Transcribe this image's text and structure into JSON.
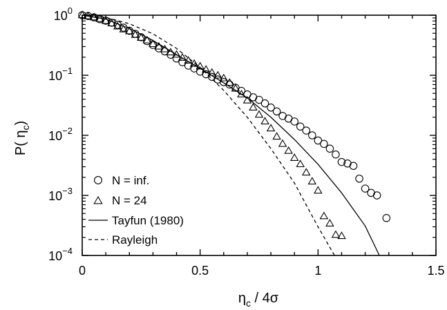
{
  "chart_data": {
    "type": "scatter",
    "xlabel_main": "η",
    "xlabel_sub": "c",
    "xlabel_rest": " / 4σ",
    "ylabel_pre": "P( η",
    "ylabel_sub": "c",
    "ylabel_post": ")",
    "xlim": [
      0,
      1.5
    ],
    "ylim": [
      0.0001,
      1
    ],
    "yscale": "log",
    "grid": false,
    "legend_position": "bottom-left",
    "xticks": [
      {
        "value": 0,
        "label": "0"
      },
      {
        "value": 0.5,
        "label": "0.5"
      },
      {
        "value": 1,
        "label": "1"
      },
      {
        "value": 1.5,
        "label": "1.5"
      }
    ],
    "yticks": [
      {
        "value": 1,
        "base": "10",
        "exp": "0"
      },
      {
        "value": 0.1,
        "base": "10",
        "exp": "−1"
      },
      {
        "value": 0.01,
        "base": "10",
        "exp": "−2"
      },
      {
        "value": 0.001,
        "base": "10",
        "exp": "−3"
      },
      {
        "value": 0.0001,
        "base": "10",
        "exp": "−4"
      }
    ],
    "series": [
      {
        "name": "N = inf.",
        "kind": "markers",
        "marker": "circle",
        "x": [
          0.0,
          0.025,
          0.05,
          0.075,
          0.1,
          0.125,
          0.15,
          0.175,
          0.2,
          0.225,
          0.25,
          0.275,
          0.3,
          0.325,
          0.35,
          0.375,
          0.4,
          0.425,
          0.45,
          0.475,
          0.5,
          0.525,
          0.55,
          0.575,
          0.6,
          0.625,
          0.65,
          0.675,
          0.7,
          0.725,
          0.75,
          0.775,
          0.8,
          0.825,
          0.85,
          0.875,
          0.9,
          0.925,
          0.95,
          0.975,
          1.0,
          1.025,
          1.05,
          1.075,
          1.1,
          1.125,
          1.15,
          1.175,
          1.2,
          1.225,
          1.25,
          1.29
        ],
        "y": [
          1.0,
          0.97,
          0.92,
          0.86,
          0.81,
          0.75,
          0.69,
          0.62,
          0.55,
          0.49,
          0.43,
          0.37,
          0.32,
          0.28,
          0.25,
          0.22,
          0.19,
          0.165,
          0.145,
          0.13,
          0.115,
          0.104,
          0.094,
          0.085,
          0.077,
          0.07,
          0.062,
          0.055,
          0.048,
          0.043,
          0.039,
          0.034,
          0.029,
          0.025,
          0.021,
          0.019,
          0.017,
          0.014,
          0.012,
          0.01,
          0.0082,
          0.0072,
          0.006,
          0.0048,
          0.0036,
          0.0034,
          0.0031,
          0.0019,
          0.0013,
          0.0011,
          0.001,
          0.00042
        ]
      },
      {
        "name": "N = 24",
        "kind": "markers",
        "marker": "triangle",
        "x": [
          0.0,
          0.025,
          0.05,
          0.075,
          0.1,
          0.125,
          0.15,
          0.175,
          0.2,
          0.225,
          0.25,
          0.275,
          0.3,
          0.325,
          0.35,
          0.375,
          0.4,
          0.425,
          0.45,
          0.475,
          0.5,
          0.525,
          0.55,
          0.575,
          0.6,
          0.625,
          0.65,
          0.675,
          0.7,
          0.725,
          0.75,
          0.775,
          0.8,
          0.825,
          0.85,
          0.875,
          0.9,
          0.925,
          0.95,
          0.975,
          1.0,
          1.025,
          1.05,
          1.075,
          1.1
        ],
        "y": [
          1.0,
          0.96,
          0.92,
          0.86,
          0.8,
          0.73,
          0.65,
          0.58,
          0.54,
          0.47,
          0.42,
          0.38,
          0.33,
          0.3,
          0.27,
          0.24,
          0.22,
          0.195,
          0.175,
          0.155,
          0.14,
          0.124,
          0.11,
          0.099,
          0.089,
          0.075,
          0.06,
          0.048,
          0.038,
          0.029,
          0.022,
          0.017,
          0.013,
          0.0095,
          0.0072,
          0.0055,
          0.0042,
          0.0033,
          0.0024,
          0.0017,
          0.0012,
          0.00045,
          0.00034,
          0.00022,
          0.00021
        ]
      },
      {
        "name": "Tayfun (1980)",
        "kind": "line",
        "dash": "solid",
        "x": [
          0,
          0.1,
          0.2,
          0.3,
          0.4,
          0.5,
          0.6,
          0.7,
          0.8,
          0.9,
          1.0,
          1.1,
          1.2,
          1.26
        ],
        "y": [
          1.0,
          0.86,
          0.6,
          0.38,
          0.22,
          0.13,
          0.075,
          0.042,
          0.02,
          0.0085,
          0.0033,
          0.0011,
          0.00031,
          0.0001
        ]
      },
      {
        "name": "Rayleigh",
        "kind": "line",
        "dash": "dashed",
        "x": [
          0,
          0.1,
          0.2,
          0.3,
          0.4,
          0.5,
          0.6,
          0.7,
          0.8,
          0.9,
          1.0,
          1.07
        ],
        "y": [
          1.0,
          0.92,
          0.72,
          0.49,
          0.28,
          0.135,
          0.056,
          0.02,
          0.006,
          0.0016,
          0.0003,
          0.0001
        ]
      }
    ]
  }
}
